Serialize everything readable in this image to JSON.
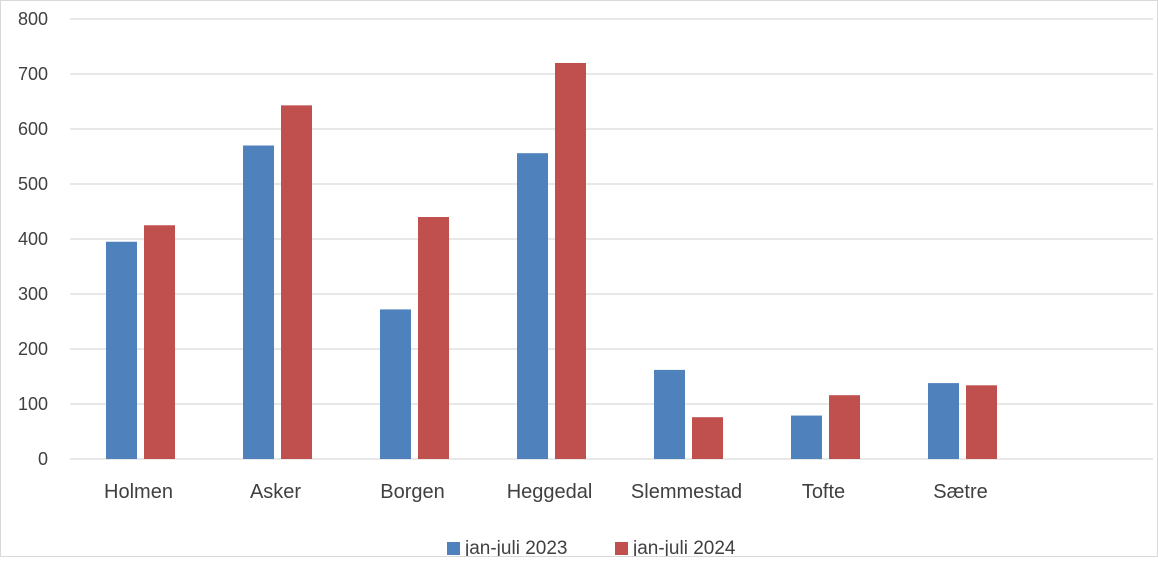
{
  "chart_data": {
    "type": "bar",
    "categories": [
      "Holmen",
      "Asker",
      "Borgen",
      "Heggedal",
      "Slemmestad",
      "Tofte",
      "Sætre"
    ],
    "series": [
      {
        "name": "jan-juli 2023",
        "color": "#4f81bd",
        "values": [
          395,
          570,
          272,
          556,
          162,
          79,
          138
        ]
      },
      {
        "name": "jan-juli 2024",
        "color": "#c0504d",
        "values": [
          425,
          643,
          440,
          720,
          76,
          116,
          134
        ]
      }
    ],
    "yticks": [
      0,
      100,
      200,
      300,
      400,
      500,
      600,
      700,
      800
    ],
    "ylim": [
      0,
      800
    ],
    "grid": true,
    "legend": "bottom-center"
  }
}
